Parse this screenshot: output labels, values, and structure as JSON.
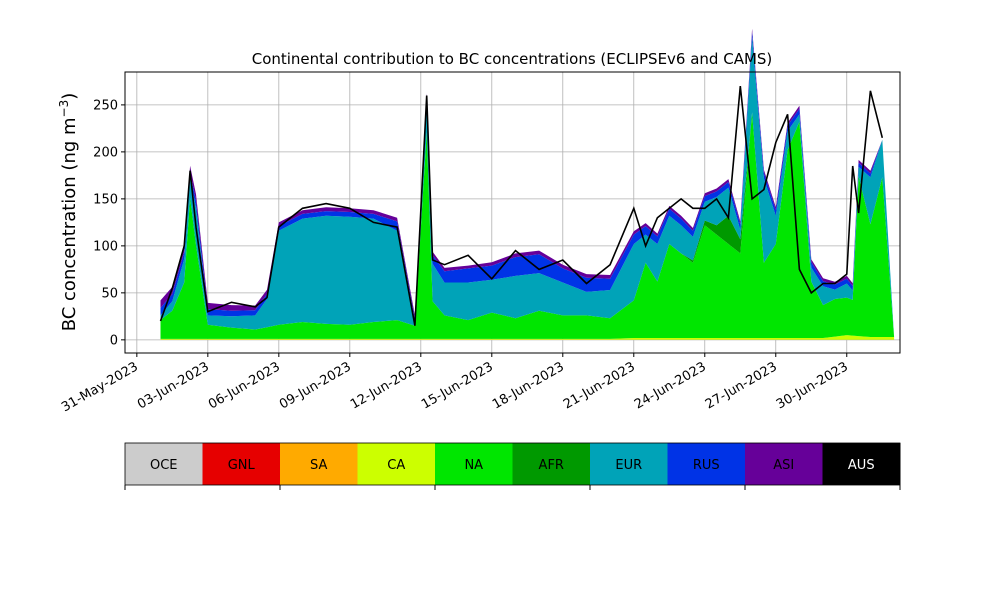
{
  "chart_data": {
    "type": "area",
    "stacked": true,
    "title": "Continental contribution to BC concentrations (ECLIPSEv6 and CAMS)",
    "ylabel": "BC concentration (ng m",
    "ylabel_sup": "−3",
    "ylabel_close": ")",
    "xlabel": "",
    "grid": true,
    "xlim": [
      "2023-05-30T12:00",
      "2023-07-02T06:00"
    ],
    "ylim": [
      -14,
      285
    ],
    "y_ticks": [
      0,
      50,
      100,
      150,
      200,
      250
    ],
    "x_ticks": [
      {
        "date": "2023-05-31",
        "label": "31-May-2023"
      },
      {
        "date": "2023-06-03",
        "label": "03-Jun-2023"
      },
      {
        "date": "2023-06-06",
        "label": "06-Jun-2023"
      },
      {
        "date": "2023-06-09",
        "label": "09-Jun-2023"
      },
      {
        "date": "2023-06-12",
        "label": "12-Jun-2023"
      },
      {
        "date": "2023-06-15",
        "label": "15-Jun-2023"
      },
      {
        "date": "2023-06-18",
        "label": "18-Jun-2023"
      },
      {
        "date": "2023-06-21",
        "label": "21-Jun-2023"
      },
      {
        "date": "2023-06-24",
        "label": "24-Jun-2023"
      },
      {
        "date": "2023-06-27",
        "label": "27-Jun-2023"
      },
      {
        "date": "2023-06-30",
        "label": "30-Jun-2023"
      }
    ],
    "legend": [
      {
        "name": "OCE",
        "color": "#cccccc",
        "text_color": "#000000"
      },
      {
        "name": "GNL",
        "color": "#e60000",
        "text_color": "#000000"
      },
      {
        "name": "SA",
        "color": "#ffaa00",
        "text_color": "#000000"
      },
      {
        "name": "CA",
        "color": "#ccff00",
        "text_color": "#000000"
      },
      {
        "name": "NA",
        "color": "#00e600",
        "text_color": "#000000"
      },
      {
        "name": "AFR",
        "color": "#009900",
        "text_color": "#000000"
      },
      {
        "name": "EUR",
        "color": "#00a3b8",
        "text_color": "#000000"
      },
      {
        "name": "RUS",
        "color": "#0033e6",
        "text_color": "#000000"
      },
      {
        "name": "ASI",
        "color": "#660099",
        "text_color": "#000000"
      },
      {
        "name": "AUS",
        "color": "#000000",
        "text_color": "#ffffff"
      }
    ],
    "legend_position": "bottom",
    "series": [
      {
        "name": "CA",
        "color": "#ccff00",
        "x": [
          "2023-06-01",
          "2023-06-20",
          "2023-06-21",
          "2023-06-24",
          "2023-06-28",
          "2023-06-29",
          "2023-06-30",
          "2023-07-01",
          "2023-07-02"
        ],
        "values": [
          1,
          1,
          2,
          2,
          2,
          2,
          5,
          3,
          3
        ]
      },
      {
        "name": "NA",
        "color": "#00e600",
        "x": [
          "2023-06-01",
          "2023-06-01T12:00",
          "2023-06-02",
          "2023-06-02T06:00",
          "2023-06-02T12:00",
          "2023-06-03",
          "2023-06-04",
          "2023-06-05",
          "2023-06-06",
          "2023-06-07",
          "2023-06-08",
          "2023-06-09",
          "2023-06-10",
          "2023-06-11",
          "2023-06-11T18:00",
          "2023-06-12T06:00",
          "2023-06-12T12:00",
          "2023-06-13",
          "2023-06-14",
          "2023-06-15",
          "2023-06-16",
          "2023-06-17",
          "2023-06-18",
          "2023-06-19",
          "2023-06-20",
          "2023-06-21",
          "2023-06-21T12:00",
          "2023-06-22",
          "2023-06-22T12:00",
          "2023-06-23",
          "2023-06-23T12:00",
          "2023-06-24",
          "2023-06-24T12:00",
          "2023-06-25",
          "2023-06-25T12:00",
          "2023-06-26",
          "2023-06-26T12:00",
          "2023-06-27",
          "2023-06-27T12:00",
          "2023-06-28",
          "2023-06-28T12:00",
          "2023-06-29",
          "2023-06-29T12:00",
          "2023-06-30",
          "2023-06-30T06:00",
          "2023-06-30T12:00",
          "2023-07-01",
          "2023-07-01T12:00"
        ],
        "values": [
          20,
          30,
          60,
          150,
          100,
          15,
          12,
          10,
          15,
          18,
          16,
          15,
          18,
          20,
          14,
          220,
          40,
          25,
          20,
          28,
          22,
          30,
          25,
          25,
          22,
          40,
          80,
          60,
          100,
          90,
          80,
          120,
          110,
          100,
          90,
          240,
          80,
          100,
          200,
          230,
          60,
          35,
          40,
          40,
          38,
          170,
          120,
          170
        ]
      },
      {
        "name": "AFR",
        "color": "#009900",
        "x": [
          "2023-06-22",
          "2023-06-23",
          "2023-06-24",
          "2023-06-24T12:00",
          "2023-06-25",
          "2023-06-25T12:00",
          "2023-06-26"
        ],
        "values": [
          0,
          0,
          5,
          10,
          30,
          15,
          0
        ]
      },
      {
        "name": "EUR",
        "color": "#00a3b8",
        "x": [
          "2023-06-01",
          "2023-06-01T12:00",
          "2023-06-02",
          "2023-06-02T06:00",
          "2023-06-02T12:00",
          "2023-06-03",
          "2023-06-04",
          "2023-06-05",
          "2023-06-05T12:00",
          "2023-06-06",
          "2023-06-07",
          "2023-06-08",
          "2023-06-09",
          "2023-06-10",
          "2023-06-11",
          "2023-06-11T18:00",
          "2023-06-12T06:00",
          "2023-06-12T12:00",
          "2023-06-13",
          "2023-06-14",
          "2023-06-15",
          "2023-06-16",
          "2023-06-17",
          "2023-06-18",
          "2023-06-19",
          "2023-06-20",
          "2023-06-21",
          "2023-06-21T12:00",
          "2023-06-22",
          "2023-06-22T12:00",
          "2023-06-23",
          "2023-06-23T12:00",
          "2023-06-24",
          "2023-06-24T12:00",
          "2023-06-25",
          "2023-06-25T12:00",
          "2023-06-26",
          "2023-06-26T12:00",
          "2023-06-27",
          "2023-06-27T12:00",
          "2023-06-28",
          "2023-06-28T12:00",
          "2023-06-29",
          "2023-06-29T12:00",
          "2023-06-30",
          "2023-06-30T06:00",
          "2023-06-30T12:00",
          "2023-07-01",
          "2023-07-01T12:00"
        ],
        "values": [
          5,
          10,
          25,
          20,
          40,
          10,
          12,
          15,
          30,
          100,
          110,
          115,
          115,
          110,
          95,
          0,
          30,
          40,
          35,
          40,
          35,
          45,
          40,
          35,
          25,
          30,
          60,
          30,
          40,
          30,
          30,
          25,
          20,
          30,
          30,
          10,
          80,
          90,
          30,
          20,
          8,
          15,
          20,
          10,
          15,
          10,
          10,
          50,
          40
        ]
      },
      {
        "name": "RUS",
        "color": "#0033e6",
        "x": [
          "2023-06-01",
          "2023-06-04",
          "2023-06-06",
          "2023-06-10",
          "2023-06-11",
          "2023-06-12",
          "2023-06-13",
          "2023-06-14",
          "2023-06-15",
          "2023-06-16",
          "2023-06-17",
          "2023-06-18",
          "2023-06-19",
          "2023-06-20",
          "2023-06-21",
          "2023-06-22",
          "2023-06-24",
          "2023-06-26",
          "2023-06-28",
          "2023-06-30",
          "2023-07-01"
        ],
        "values": [
          8,
          6,
          5,
          5,
          10,
          6,
          12,
          15,
          15,
          20,
          20,
          15,
          15,
          12,
          10,
          8,
          6,
          6,
          6,
          5,
          4
        ]
      },
      {
        "name": "ASI",
        "color": "#660099",
        "x": [
          "2023-06-01",
          "2023-06-04",
          "2023-06-06",
          "2023-06-10",
          "2023-06-12",
          "2023-06-14",
          "2023-06-16",
          "2023-06-18",
          "2023-06-20",
          "2023-06-22",
          "2023-06-24",
          "2023-06-26",
          "2023-06-28",
          "2023-06-30",
          "2023-07-01"
        ],
        "values": [
          8,
          6,
          4,
          4,
          4,
          3,
          4,
          4,
          4,
          3,
          3,
          3,
          3,
          3,
          3
        ]
      },
      {
        "name": "AUS",
        "color": "#000000",
        "type": "line",
        "x": [
          "2023-06-01",
          "2023-06-01T12:00",
          "2023-06-02",
          "2023-06-02T06:00",
          "2023-06-02T12:00",
          "2023-06-03",
          "2023-06-04",
          "2023-06-05",
          "2023-06-05T12:00",
          "2023-06-06",
          "2023-06-07",
          "2023-06-08",
          "2023-06-09",
          "2023-06-10",
          "2023-06-11",
          "2023-06-11T18:00",
          "2023-06-12T06:00",
          "2023-06-12T12:00",
          "2023-06-13",
          "2023-06-14",
          "2023-06-15",
          "2023-06-16",
          "2023-06-17",
          "2023-06-18",
          "2023-06-19",
          "2023-06-20",
          "2023-06-21",
          "2023-06-21T12:00",
          "2023-06-22",
          "2023-06-22T12:00",
          "2023-06-23",
          "2023-06-23T12:00",
          "2023-06-24",
          "2023-06-24T12:00",
          "2023-06-25",
          "2023-06-25T12:00",
          "2023-06-26",
          "2023-06-26T12:00",
          "2023-06-27",
          "2023-06-27T12:00",
          "2023-06-28",
          "2023-06-28T12:00",
          "2023-06-29",
          "2023-06-29T12:00",
          "2023-06-30",
          "2023-06-30T06:00",
          "2023-06-30T12:00",
          "2023-07-01",
          "2023-07-01T12:00"
        ],
        "values": [
          20,
          55,
          100,
          180,
          120,
          30,
          40,
          35,
          45,
          120,
          140,
          145,
          140,
          125,
          120,
          15,
          260,
          85,
          80,
          90,
          65,
          95,
          75,
          85,
          60,
          80,
          140,
          100,
          130,
          140,
          150,
          140,
          140,
          150,
          130,
          270,
          150,
          160,
          210,
          240,
          75,
          50,
          60,
          60,
          70,
          185,
          135,
          265,
          215
        ]
      }
    ]
  }
}
